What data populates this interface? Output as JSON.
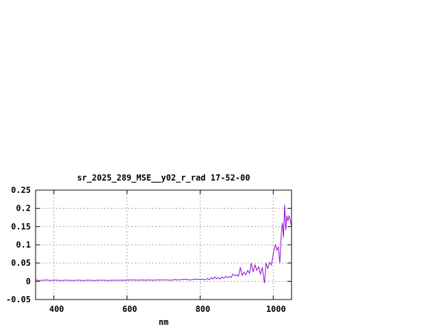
{
  "chart_data": {
    "type": "line",
    "title": "sr_2025_289_MSE__y02_r_rad 17-52-00",
    "xlabel": "nm",
    "ylabel": "",
    "xlim": [
      350,
      1050
    ],
    "ylim": [
      -0.05,
      0.25
    ],
    "xticks": [
      400,
      600,
      800,
      1000
    ],
    "xtick_labels": [
      "400",
      "600",
      "800",
      "1000"
    ],
    "yticks": [
      -0.05,
      0,
      0.05,
      0.1,
      0.15,
      0.2,
      0.25
    ],
    "ytick_labels": [
      "-0.05",
      "0",
      "0.05",
      "0.1",
      "0.15",
      "0.2",
      "0.25"
    ],
    "grid": true,
    "line_color": "#9400d3",
    "series": [
      {
        "x": [
          350,
          360,
          370,
          380,
          390,
          400,
          410,
          420,
          430,
          440,
          450,
          460,
          470,
          480,
          490,
          500,
          510,
          520,
          530,
          540,
          550,
          560,
          570,
          580,
          590,
          600,
          610,
          620,
          630,
          640,
          650,
          660,
          670,
          680,
          690,
          700,
          710,
          720,
          730,
          740,
          750,
          760,
          770,
          780,
          790,
          800,
          805,
          810,
          815,
          820,
          825,
          830,
          835,
          840,
          845,
          850,
          855,
          860,
          865,
          870,
          875,
          880,
          885,
          890,
          895,
          900,
          905,
          910,
          915,
          920,
          925,
          930,
          935,
          940,
          945,
          950,
          955,
          960,
          965,
          970,
          973,
          976,
          980,
          985,
          990,
          995,
          1000,
          1003,
          1006,
          1010,
          1014,
          1018,
          1022,
          1025,
          1028,
          1031,
          1034,
          1037,
          1040,
          1043,
          1046,
          1050
        ],
        "y": [
          0.004,
          0.002,
          0.003,
          0.004,
          0.002,
          0.003,
          0.003,
          0.002,
          0.003,
          0.003,
          0.002,
          0.003,
          0.003,
          0.002,
          0.003,
          0.003,
          0.002,
          0.003,
          0.003,
          0.003,
          0.002,
          0.003,
          0.003,
          0.003,
          0.003,
          0.003,
          0.004,
          0.004,
          0.003,
          0.004,
          0.003,
          0.004,
          0.003,
          0.004,
          0.004,
          0.004,
          0.004,
          0.003,
          0.005,
          0.004,
          0.005,
          0.006,
          0.004,
          0.005,
          0.006,
          0.005,
          0.006,
          0.005,
          0.004,
          0.008,
          0.004,
          0.01,
          0.006,
          0.012,
          0.007,
          0.01,
          0.006,
          0.012,
          0.008,
          0.014,
          0.01,
          0.013,
          0.011,
          0.02,
          0.015,
          0.018,
          0.014,
          0.038,
          0.016,
          0.025,
          0.018,
          0.03,
          0.022,
          0.05,
          0.026,
          0.045,
          0.03,
          0.04,
          0.02,
          0.038,
          0.015,
          -0.005,
          0.05,
          0.035,
          0.052,
          0.045,
          0.075,
          0.09,
          0.1,
          0.085,
          0.095,
          0.05,
          0.13,
          0.16,
          0.12,
          0.21,
          0.14,
          0.18,
          0.165,
          0.18,
          0.17,
          0.15
        ]
      }
    ]
  }
}
